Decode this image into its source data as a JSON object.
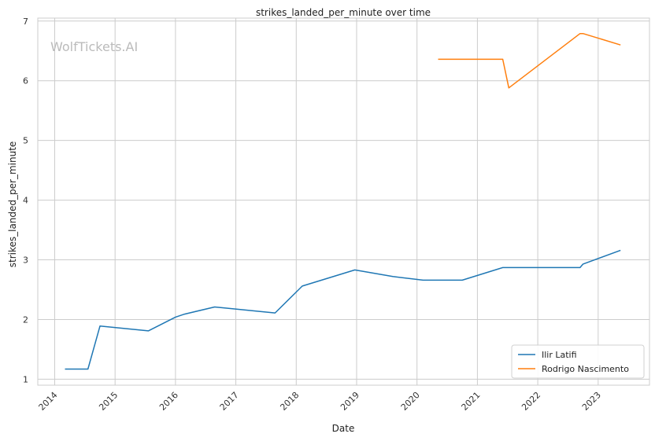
{
  "chart_data": {
    "type": "line",
    "title": "strikes_landed_per_minute over time",
    "xlabel": "Date",
    "ylabel": "strikes_landed_per_minute",
    "watermark": "WolfTickets.AI",
    "xlim": [
      2013.72,
      2023.85
    ],
    "ylim": [
      0.9,
      7.05
    ],
    "xticks": [
      2014,
      2015,
      2016,
      2017,
      2018,
      2019,
      2020,
      2021,
      2022,
      2023
    ],
    "yticks": [
      1,
      2,
      3,
      4,
      5,
      6,
      7
    ],
    "grid": true,
    "legend_position": "bottom-right",
    "colors": {
      "Ilir Latifi": "#1f77b4",
      "Rodrigo Nascimento": "#ff7f0e"
    },
    "series": [
      {
        "name": "Ilir Latifi",
        "color": "#1f77b4",
        "x": [
          2014.17,
          2014.55,
          2014.75,
          2015.55,
          2016.0,
          2016.15,
          2016.65,
          2017.65,
          2018.1,
          2018.97,
          2019.6,
          2020.1,
          2020.75,
          2021.42,
          2022.7,
          2022.75,
          2023.37
        ],
        "y": [
          1.17,
          1.17,
          1.89,
          1.81,
          2.04,
          2.09,
          2.21,
          2.11,
          2.56,
          2.83,
          2.72,
          2.66,
          2.66,
          2.87,
          2.87,
          2.93,
          3.16
        ]
      },
      {
        "name": "Rodrigo Nascimento",
        "color": "#ff7f0e",
        "x": [
          2020.35,
          2021.42,
          2021.52,
          2022.7,
          2022.75,
          2023.37
        ],
        "y": [
          6.36,
          6.36,
          5.88,
          6.79,
          6.79,
          6.6
        ]
      }
    ]
  }
}
